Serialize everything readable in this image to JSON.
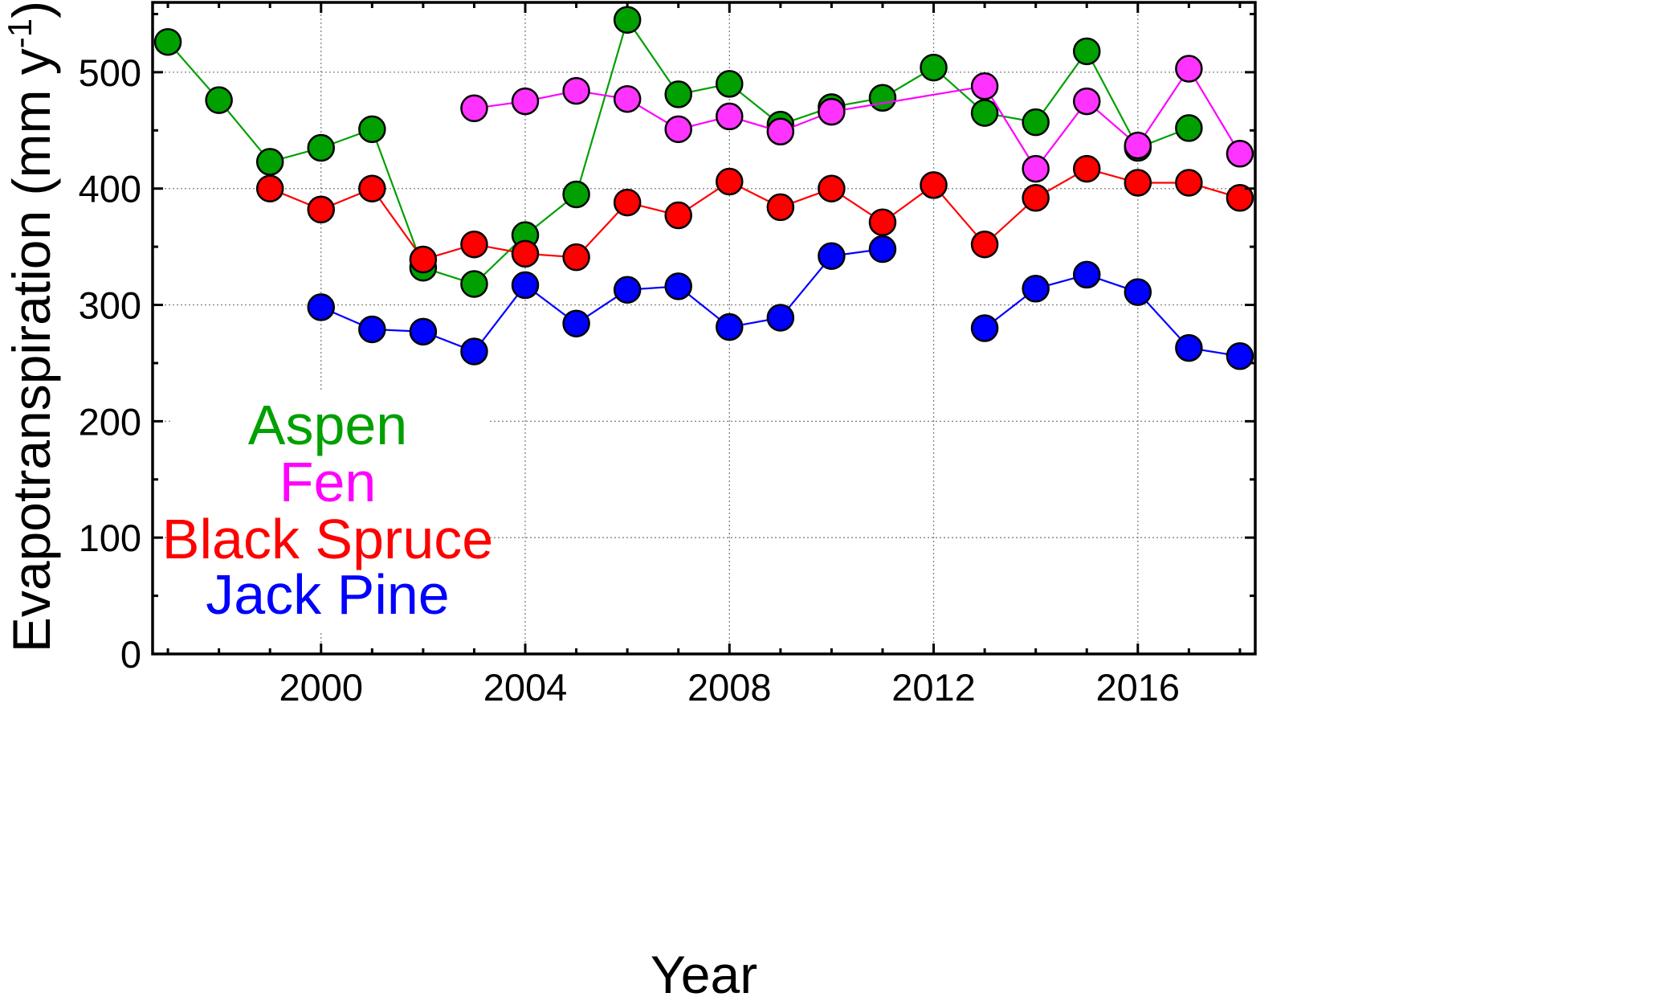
{
  "chart_data": {
    "type": "line",
    "xlabel": "Year",
    "ylabel_main": "Evapotranspiration (mm y",
    "ylabel_sup": "-1",
    "ylabel_close": ")",
    "xlim": [
      1996.7,
      2018.3
    ],
    "ylim": [
      0,
      560
    ],
    "x_ticks": [
      2000,
      2004,
      2008,
      2012,
      2016
    ],
    "y_ticks": [
      0,
      100,
      200,
      300,
      400,
      500
    ],
    "grid": true,
    "legend_placement": "lower-left",
    "series": [
      {
        "name": "Aspen",
        "color": "#00a000",
        "fill": "#00a000",
        "points": [
          [
            1997,
            526
          ],
          [
            1998,
            476
          ],
          [
            1999,
            423
          ],
          [
            2000,
            435
          ],
          [
            2001,
            451
          ],
          [
            2002,
            332
          ],
          [
            2003,
            318
          ],
          [
            2004,
            360
          ],
          [
            2005,
            395
          ],
          [
            2006,
            545
          ],
          [
            2007,
            481
          ],
          [
            2008,
            490
          ],
          [
            2009,
            455
          ],
          [
            2010,
            470
          ],
          [
            2011,
            478
          ],
          [
            2012,
            504
          ],
          [
            2013,
            465
          ],
          [
            2014,
            457
          ],
          [
            2015,
            518
          ],
          [
            2016,
            435
          ],
          [
            2017,
            452
          ]
        ]
      },
      {
        "name": "Fen",
        "color": "#ff00ff",
        "fill": "#ff33ff",
        "points": [
          [
            2003,
            469
          ],
          [
            2004,
            475
          ],
          [
            2005,
            484
          ],
          [
            2006,
            477
          ],
          [
            2007,
            451
          ],
          [
            2008,
            462
          ],
          [
            2009,
            449
          ],
          [
            2010,
            466
          ],
          [
            2013,
            488
          ],
          [
            2014,
            417
          ],
          [
            2015,
            475
          ],
          [
            2016,
            437
          ],
          [
            2017,
            503
          ],
          [
            2018,
            430
          ]
        ]
      },
      {
        "name": "Black Spruce",
        "color": "#ff0000",
        "fill": "#ff0000",
        "points": [
          [
            1999,
            400
          ],
          [
            2000,
            382
          ],
          [
            2001,
            400
          ],
          [
            2002,
            339
          ],
          [
            2003,
            352
          ],
          [
            2004,
            344
          ],
          [
            2005,
            341
          ],
          [
            2006,
            388
          ],
          [
            2007,
            377
          ],
          [
            2008,
            406
          ],
          [
            2009,
            384
          ],
          [
            2010,
            400
          ],
          [
            2011,
            371
          ],
          [
            2012,
            403
          ],
          [
            2013,
            352
          ],
          [
            2014,
            392
          ],
          [
            2015,
            417
          ],
          [
            2016,
            405
          ],
          [
            2017,
            405
          ],
          [
            2018,
            392
          ]
        ]
      },
      {
        "name": "Jack Pine",
        "color": "#0000ff",
        "fill": "#0000ff",
        "points": [
          [
            2000,
            298
          ],
          [
            2001,
            279
          ],
          [
            2002,
            277
          ],
          [
            2003,
            260
          ],
          [
            2004,
            317
          ],
          [
            2005,
            284
          ],
          [
            2006,
            313
          ],
          [
            2007,
            316
          ],
          [
            2008,
            281
          ],
          [
            2009,
            289
          ],
          [
            2010,
            342
          ],
          [
            2011,
            348
          ],
          null,
          [
            2013,
            280
          ],
          [
            2014,
            314
          ],
          [
            2015,
            326
          ],
          [
            2016,
            311
          ],
          [
            2017,
            263
          ],
          [
            2018,
            256
          ]
        ]
      }
    ]
  }
}
